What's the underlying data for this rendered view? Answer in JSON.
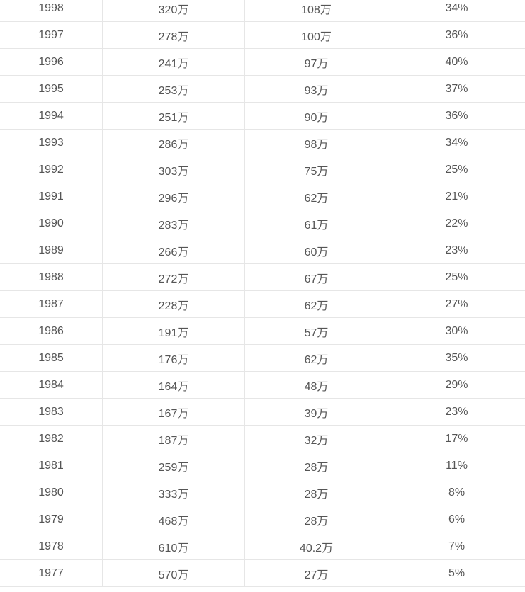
{
  "table": {
    "rows": [
      [
        "1998",
        "320万",
        "108万",
        "34%"
      ],
      [
        "1997",
        "278万",
        "100万",
        "36%"
      ],
      [
        "1996",
        "241万",
        "97万",
        "40%"
      ],
      [
        "1995",
        "253万",
        "93万",
        "37%"
      ],
      [
        "1994",
        "251万",
        "90万",
        "36%"
      ],
      [
        "1993",
        "286万",
        "98万",
        "34%"
      ],
      [
        "1992",
        "303万",
        "75万",
        "25%"
      ],
      [
        "1991",
        "296万",
        "62万",
        "21%"
      ],
      [
        "1990",
        "283万",
        "61万",
        "22%"
      ],
      [
        "1989",
        "266万",
        "60万",
        "23%"
      ],
      [
        "1988",
        "272万",
        "67万",
        "25%"
      ],
      [
        "1987",
        "228万",
        "62万",
        "27%"
      ],
      [
        "1986",
        "191万",
        "57万",
        "30%"
      ],
      [
        "1985",
        "176万",
        "62万",
        "35%"
      ],
      [
        "1984",
        "164万",
        "48万",
        "29%"
      ],
      [
        "1983",
        "167万",
        "39万",
        "23%"
      ],
      [
        "1982",
        "187万",
        "32万",
        "17%"
      ],
      [
        "1981",
        "259万",
        "28万",
        "11%"
      ],
      [
        "1980",
        "333万",
        "28万",
        "8%"
      ],
      [
        "1979",
        "468万",
        "28万",
        "6%"
      ],
      [
        "1978",
        "610万",
        "40.2万",
        "7%"
      ],
      [
        "1977",
        "570万",
        "27万",
        "5%"
      ]
    ]
  }
}
